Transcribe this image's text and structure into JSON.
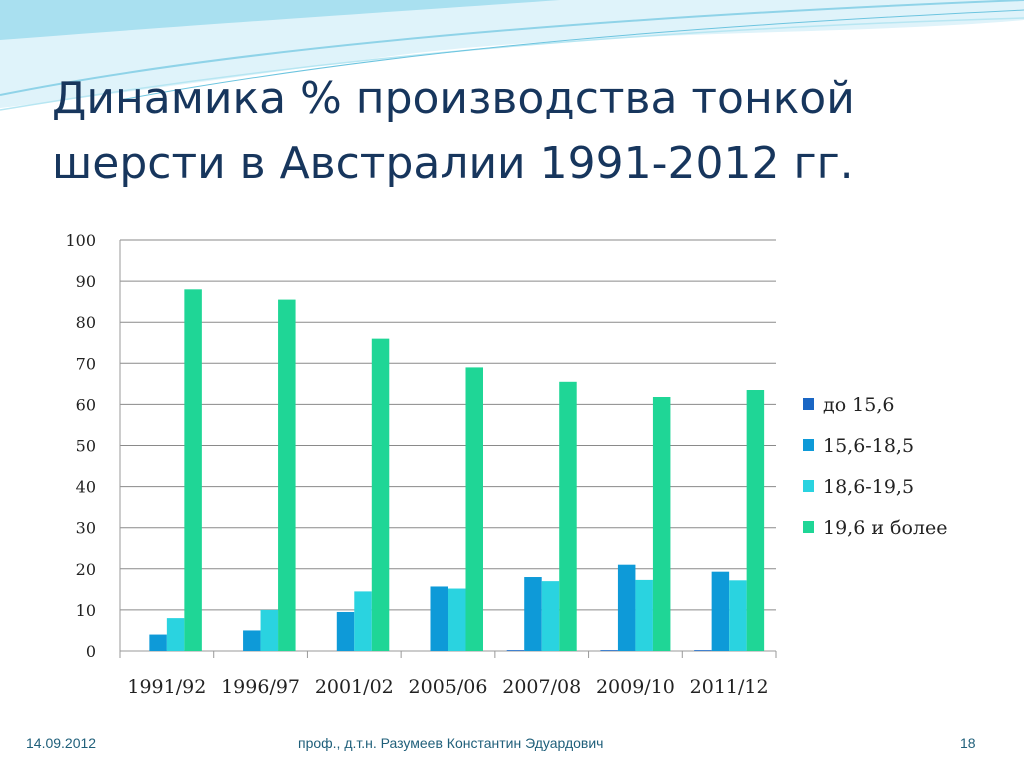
{
  "slide": {
    "title": "Динамика % производства тонкой шерсти в Австралии 1991-2012 гг."
  },
  "footer": {
    "date": "14.09.2012",
    "author": "проф., д.т.н. Разумеев Константин Эдуардович",
    "page": "18"
  },
  "colors": {
    "title": "#17365d",
    "deco_wave": "#8fd3e8",
    "series": [
      "#1a66c4",
      "#0e9ad8",
      "#2ad3e0",
      "#1fd696"
    ]
  },
  "chart_data": {
    "type": "bar",
    "categories": [
      "1991/92",
      "1996/97",
      "2001/02",
      "2005/06",
      "2007/08",
      "2009/10",
      "2011/12"
    ],
    "series": [
      {
        "name": "до 15,6",
        "values": [
          0,
          0,
          0,
          0,
          0.2,
          0.2,
          0.2
        ]
      },
      {
        "name": "15,6-18,5",
        "values": [
          4,
          5,
          9.5,
          15.7,
          18,
          21,
          19.3
        ]
      },
      {
        "name": "18,6-19,5",
        "values": [
          8,
          10,
          14.5,
          15.2,
          17,
          17.3,
          17.2
        ]
      },
      {
        "name": "19,6 и более",
        "values": [
          88,
          85.5,
          76,
          69,
          65.5,
          61.8,
          63.5
        ]
      }
    ],
    "ylim": [
      0,
      100
    ],
    "yticks": [
      "0",
      "10",
      "20",
      "30",
      "40",
      "50",
      "60",
      "70",
      "80",
      "90",
      "100"
    ],
    "grid": true,
    "legend_position": "right"
  }
}
